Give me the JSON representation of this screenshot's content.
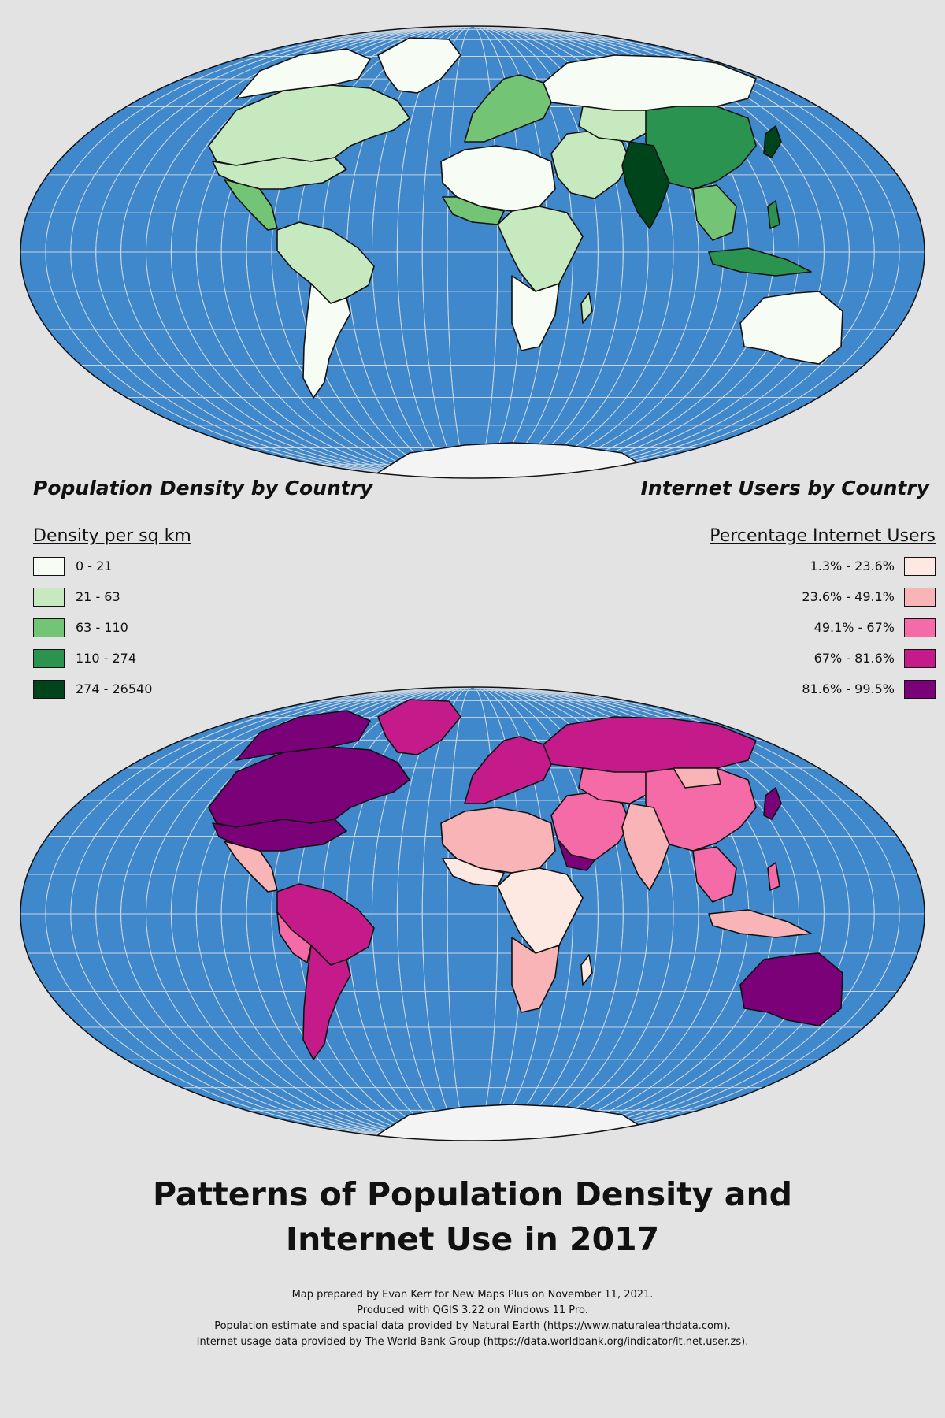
{
  "maps": {
    "population": {
      "section_title": "Population Density by Country"
    },
    "internet": {
      "section_title": "Internet Users by Country"
    }
  },
  "legend_density": {
    "title": "Density per sq km",
    "items": [
      {
        "label": "0 - 21",
        "color": "#f7fcf5"
      },
      {
        "label": "21 - 63",
        "color": "#c7e9c0"
      },
      {
        "label": "63 - 110",
        "color": "#74c476"
      },
      {
        "label": "110 - 274",
        "color": "#2a9350"
      },
      {
        "label": "274 - 26540",
        "color": "#00441b"
      }
    ]
  },
  "legend_internet": {
    "title": "Percentage Internet Users",
    "items": [
      {
        "label": "1.3% - 23.6%",
        "color": "#fde8e2"
      },
      {
        "label": "23.6% - 49.1%",
        "color": "#f9b4b8"
      },
      {
        "label": "49.1% - 67%",
        "color": "#f56ba8"
      },
      {
        "label": "67% - 81.6%",
        "color": "#c51b8a"
      },
      {
        "label": "81.6% - 99.5%",
        "color": "#7a0177"
      }
    ]
  },
  "colors": {
    "ocean": "#3f88cc",
    "graticule": "#c9d4df",
    "antarctica": "#f4f4f4",
    "background": "#e3e3e3"
  },
  "main_title": {
    "line1": "Patterns of Population Density and",
    "line2": "Internet Use in 2017"
  },
  "credits": [
    "Map prepared by Evan Kerr for New Maps Plus on November 11, 2021.",
    "Produced with QGIS 3.22 on Windows 11 Pro.",
    "Population estimate and spacial data provided by Natural Earth (https://www.naturalearthdata.com).",
    "Internet usage data provided by The World Bank Group (https://data.worldbank.org/indicator/it.net.user.zs)."
  ]
}
